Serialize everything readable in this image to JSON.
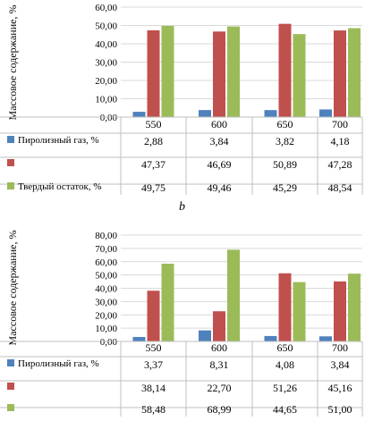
{
  "caption_b": "b",
  "chart_data": [
    {
      "type": "bar",
      "ylabel": "Массовое содержание, %",
      "ylim": [
        0,
        60
      ],
      "yticks": [
        "0,00",
        "10,00",
        "20,00",
        "30,00",
        "40,00",
        "50,00",
        "60,00"
      ],
      "categories": [
        "550",
        "600",
        "650",
        "700"
      ],
      "series": [
        {
          "name": "Пиролизный газ, %",
          "color": "#4f81bd",
          "values": [
            2.88,
            3.84,
            3.82,
            4.18
          ],
          "labels": [
            "2,88",
            "3,84",
            "3,82",
            "4,18"
          ]
        },
        {
          "name": "",
          "color": "#c0504d",
          "values": [
            47.37,
            46.69,
            50.89,
            47.28
          ],
          "labels": [
            "47,37",
            "46,69",
            "50,89",
            "47,28"
          ]
        },
        {
          "name": "Твердый остаток, %",
          "color": "#9bbb59",
          "values": [
            49.75,
            49.46,
            45.29,
            48.54
          ],
          "labels": [
            "49,75",
            "49,46",
            "45,29",
            "48,54"
          ]
        }
      ]
    },
    {
      "type": "bar",
      "ylabel": "Массовое содержание, %",
      "ylim": [
        0,
        80
      ],
      "yticks": [
        "0,00",
        "10,00",
        "20,00",
        "30,00",
        "40,00",
        "50,00",
        "60,00",
        "70,00",
        "80,00"
      ],
      "categories": [
        "550",
        "600",
        "650",
        "700"
      ],
      "series": [
        {
          "name": "Пиролизный газ, %",
          "color": "#4f81bd",
          "values": [
            3.37,
            8.31,
            4.08,
            3.84
          ],
          "labels": [
            "3,37",
            "8,31",
            "4,08",
            "3,84"
          ]
        },
        {
          "name": "",
          "color": "#c0504d",
          "values": [
            38.14,
            22.7,
            51.26,
            45.16
          ],
          "labels": [
            "38,14",
            "22,70",
            "51,26",
            "45,16"
          ]
        },
        {
          "name": "",
          "color": "#9bbb59",
          "values": [
            58.48,
            68.99,
            44.65,
            51.0
          ],
          "labels": [
            "58,48",
            "68,99",
            "44,65",
            "51,00"
          ]
        }
      ]
    }
  ]
}
